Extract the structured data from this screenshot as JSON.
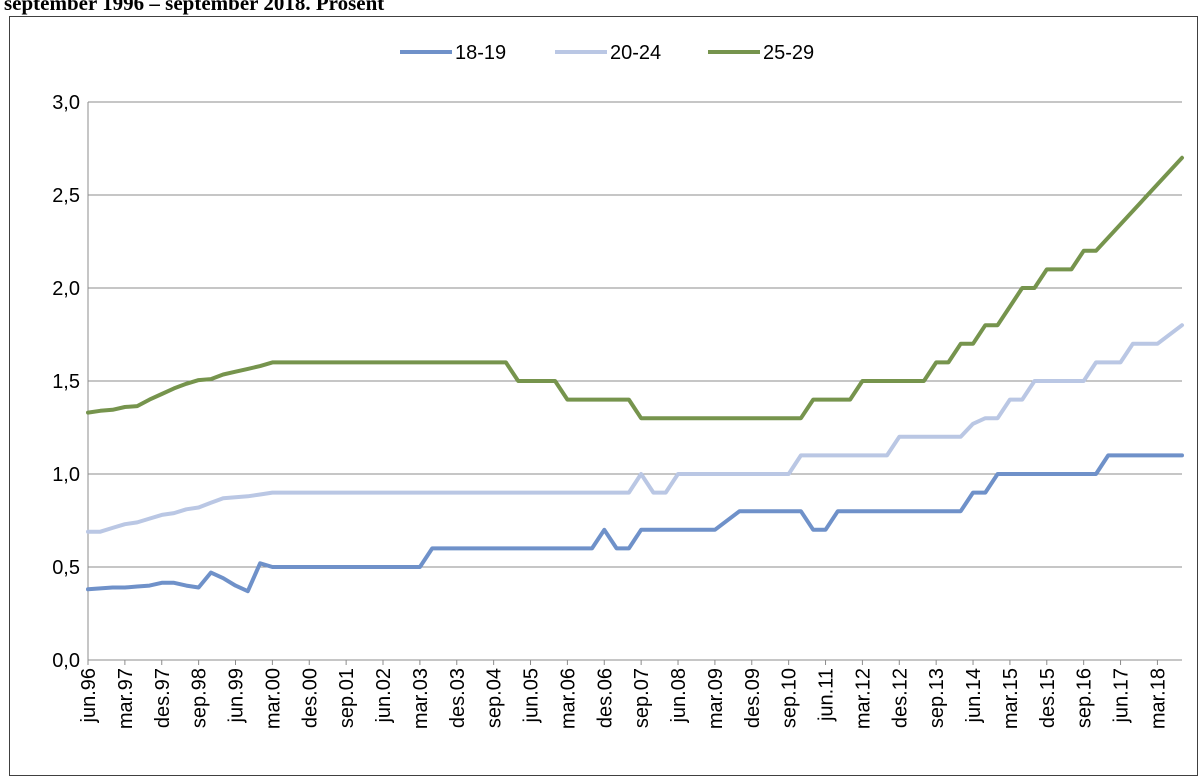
{
  "page": {
    "title": "september 1996 – september 2018. Prosent"
  },
  "chart_data": {
    "type": "line",
    "title": "september 1996 – september 2018. Prosent",
    "xlabel": "",
    "ylabel": "",
    "ylim": [
      0,
      3.0
    ],
    "yticks": [
      "0,0",
      "0,5",
      "1,0",
      "1,5",
      "2,0",
      "2,5",
      "3,0"
    ],
    "grid": true,
    "legend_position": "top-center",
    "x_tick_labels": [
      "jun.96",
      "mar.97",
      "des.97",
      "sep.98",
      "jun.99",
      "mar.00",
      "des.00",
      "sep.01",
      "jun.02",
      "mar.03",
      "des.03",
      "sep.04",
      "jun.05",
      "mar.06",
      "des.06",
      "sep.07",
      "jun.08",
      "mar.09",
      "des.09",
      "sep.10",
      "jun.11",
      "mar.12",
      "des.12",
      "sep.13",
      "jun.14",
      "mar.15",
      "des.15",
      "sep.16",
      "jun.17",
      "mar.18"
    ],
    "x_start": "jun.96",
    "x_end": "sep.18",
    "series": [
      {
        "name": "18-19",
        "color": "#6F91C9",
        "points": [
          [
            "jun.96",
            0.38
          ],
          [
            "sep.96",
            0.385
          ],
          [
            "des.96",
            0.39
          ],
          [
            "mar.97",
            0.39
          ],
          [
            "jun.97",
            0.395
          ],
          [
            "sep.97",
            0.4
          ],
          [
            "des.97",
            0.415
          ],
          [
            "mar.98",
            0.415
          ],
          [
            "jun.98",
            0.4
          ],
          [
            "sep.98",
            0.39
          ],
          [
            "des.98",
            0.47
          ],
          [
            "mar.99",
            0.44
          ],
          [
            "jun.99",
            0.4
          ],
          [
            "sep.99",
            0.37
          ],
          [
            "des.99",
            0.52
          ],
          [
            "mar.00",
            0.5
          ],
          [
            "mar.03",
            0.5
          ],
          [
            "jun.03",
            0.6
          ],
          [
            "sep.06",
            0.6
          ],
          [
            "des.06",
            0.7
          ],
          [
            "mar.07",
            0.6
          ],
          [
            "jun.07",
            0.6
          ],
          [
            "sep.07",
            0.7
          ],
          [
            "mar.09",
            0.7
          ],
          [
            "sep.09",
            0.8
          ],
          [
            "des.10",
            0.8
          ],
          [
            "mar.11",
            0.7
          ],
          [
            "jun.11",
            0.7
          ],
          [
            "sep.11",
            0.8
          ],
          [
            "mar.14",
            0.8
          ],
          [
            "jun.14",
            0.9
          ],
          [
            "sep.14",
            0.9
          ],
          [
            "des.14",
            1.0
          ],
          [
            "des.16",
            1.0
          ],
          [
            "mar.17",
            1.1
          ],
          [
            "sep.18",
            1.1
          ]
        ]
      },
      {
        "name": "20-24",
        "color": "#BAC7E4",
        "points": [
          [
            "jun.96",
            0.69
          ],
          [
            "sep.96",
            0.69
          ],
          [
            "des.96",
            0.71
          ],
          [
            "mar.97",
            0.73
          ],
          [
            "jun.97",
            0.74
          ],
          [
            "sep.97",
            0.76
          ],
          [
            "des.97",
            0.78
          ],
          [
            "mar.98",
            0.79
          ],
          [
            "jun.98",
            0.81
          ],
          [
            "sep.98",
            0.82
          ],
          [
            "des.98",
            0.845
          ],
          [
            "mar.99",
            0.87
          ],
          [
            "jun.99",
            0.875
          ],
          [
            "sep.99",
            0.88
          ],
          [
            "des.99",
            0.89
          ],
          [
            "mar.00",
            0.9
          ],
          [
            "jun.07",
            0.9
          ],
          [
            "sep.07",
            1.0
          ],
          [
            "des.07",
            0.9
          ],
          [
            "mar.08",
            0.9
          ],
          [
            "jun.08",
            1.0
          ],
          [
            "sep.10",
            1.0
          ],
          [
            "des.10",
            1.1
          ],
          [
            "sep.12",
            1.1
          ],
          [
            "des.12",
            1.2
          ],
          [
            "sep.13",
            1.2
          ],
          [
            "des.13",
            1.2
          ],
          [
            "mar.14",
            1.2
          ],
          [
            "jun.14",
            1.27
          ],
          [
            "sep.14",
            1.3
          ],
          [
            "des.14",
            1.3
          ],
          [
            "mar.15",
            1.4
          ],
          [
            "jun.15",
            1.4
          ],
          [
            "sep.15",
            1.5
          ],
          [
            "jun.16",
            1.5
          ],
          [
            "sep.16",
            1.5
          ],
          [
            "des.16",
            1.6
          ],
          [
            "jun.17",
            1.6
          ],
          [
            "sep.17",
            1.7
          ],
          [
            "des.17",
            1.7
          ],
          [
            "mar.18",
            1.7
          ],
          [
            "sep.18",
            1.8
          ]
        ]
      },
      {
        "name": "25-29",
        "color": "#76944D",
        "points": [
          [
            "jun.96",
            1.33
          ],
          [
            "sep.96",
            1.34
          ],
          [
            "des.96",
            1.345
          ],
          [
            "mar.97",
            1.36
          ],
          [
            "jun.97",
            1.365
          ],
          [
            "sep.97",
            1.4
          ],
          [
            "des.97",
            1.43
          ],
          [
            "mar.98",
            1.46
          ],
          [
            "jun.98",
            1.485
          ],
          [
            "sep.98",
            1.505
          ],
          [
            "des.98",
            1.51
          ],
          [
            "mar.99",
            1.535
          ],
          [
            "jun.99",
            1.55
          ],
          [
            "sep.99",
            1.565
          ],
          [
            "des.99",
            1.58
          ],
          [
            "mar.00",
            1.6
          ],
          [
            "des.04",
            1.6
          ],
          [
            "mar.05",
            1.5
          ],
          [
            "des.05",
            1.5
          ],
          [
            "mar.06",
            1.4
          ],
          [
            "jun.07",
            1.4
          ],
          [
            "sep.07",
            1.3
          ],
          [
            "des.10",
            1.3
          ],
          [
            "mar.11",
            1.4
          ],
          [
            "des.11",
            1.4
          ],
          [
            "mar.12",
            1.5
          ],
          [
            "jun.13",
            1.5
          ],
          [
            "sep.13",
            1.6
          ],
          [
            "des.13",
            1.6
          ],
          [
            "mar.14",
            1.7
          ],
          [
            "jun.14",
            1.7
          ],
          [
            "sep.14",
            1.8
          ],
          [
            "des.14",
            1.8
          ],
          [
            "mar.15",
            1.9
          ],
          [
            "jun.15",
            2.0
          ],
          [
            "sep.15",
            2.0
          ],
          [
            "des.15",
            2.1
          ],
          [
            "jun.16",
            2.1
          ],
          [
            "sep.16",
            2.2
          ],
          [
            "des.16",
            2.2
          ],
          [
            "sep.18",
            2.7
          ]
        ]
      }
    ]
  }
}
